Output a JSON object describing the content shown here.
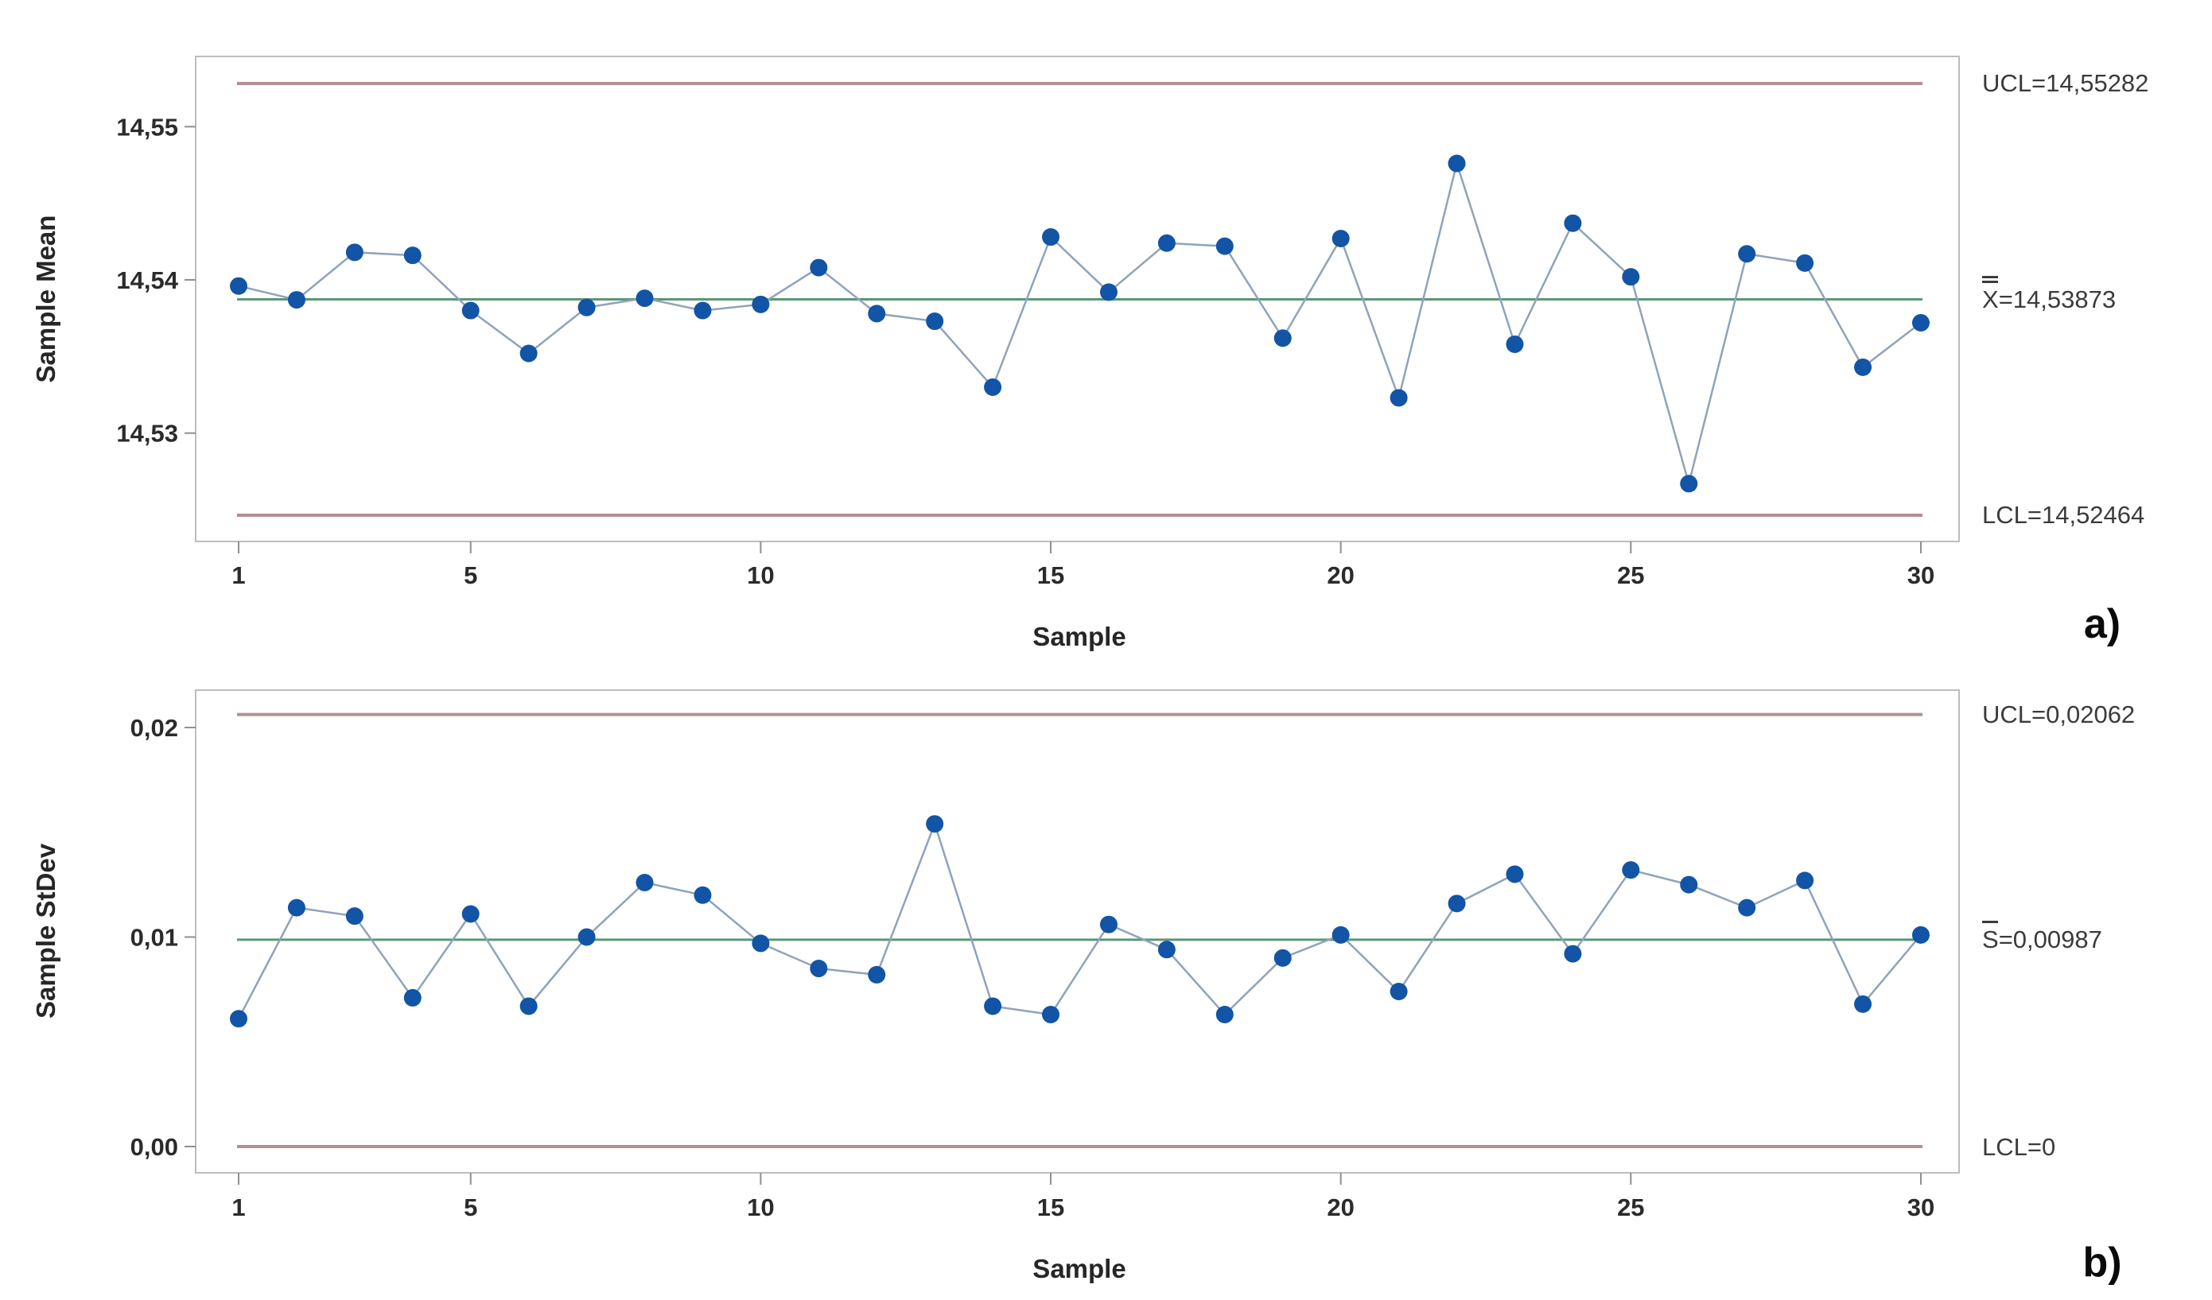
{
  "figure": {
    "background": "#ffffff",
    "panels": [
      {
        "id": "a",
        "letter": "a)",
        "xlabel": "Sample",
        "ylabel": "Sample Mean",
        "right_labels": {
          "ucl": "UCL=14,55282",
          "center_letter": "X",
          "center_bar": "double",
          "center_value": "=14,53873",
          "lcl": "LCL=14,52464"
        }
      },
      {
        "id": "b",
        "letter": "b)",
        "xlabel": "Sample",
        "ylabel": "Sample StDev",
        "right_labels": {
          "ucl": "UCL=0,02062",
          "center_letter": "S",
          "center_bar": "single",
          "center_value": "=0,00987",
          "lcl": "LCL=0"
        }
      }
    ]
  },
  "colors": {
    "marker": "#1254a6",
    "data_line": "#8fa3ba",
    "center_line": "#5c9677",
    "limit_line": "#b28f91",
    "plot_border": "#bdbdbd",
    "tick_mark": "#8f8f8f",
    "tick_text": "#2b2b2b"
  },
  "chart_data": [
    {
      "type": "line",
      "panel": "a",
      "xlabel": "Sample",
      "ylabel": "Sample Mean",
      "x": [
        1,
        2,
        3,
        4,
        5,
        6,
        7,
        8,
        9,
        10,
        11,
        12,
        13,
        14,
        15,
        16,
        17,
        18,
        19,
        20,
        21,
        22,
        23,
        24,
        25,
        26,
        27,
        28,
        29,
        30
      ],
      "values": [
        14.5396,
        14.5387,
        14.5418,
        14.5416,
        14.538,
        14.5352,
        14.5382,
        14.5388,
        14.538,
        14.5384,
        14.5408,
        14.5378,
        14.5373,
        14.533,
        14.5428,
        14.5392,
        14.5424,
        14.5422,
        14.5362,
        14.5427,
        14.5323,
        14.5476,
        14.5358,
        14.5437,
        14.5402,
        14.5267,
        14.5417,
        14.5411,
        14.5343,
        14.5372
      ],
      "center_line": 14.53873,
      "ucl": 14.55282,
      "lcl": 14.52464,
      "yticks": [
        14.53,
        14.54,
        14.55
      ],
      "ytick_labels": [
        "14,53",
        "14,54",
        "14,55"
      ],
      "xticks": [
        1,
        5,
        10,
        15,
        20,
        25,
        30
      ],
      "xtick_labels": [
        "1",
        "5",
        "10",
        "15",
        "20",
        "25",
        "30"
      ],
      "ylim": [
        14.5225,
        14.5565
      ],
      "xlim": [
        0.3,
        30.7
      ],
      "grid": false,
      "legend": false
    },
    {
      "type": "line",
      "panel": "b",
      "xlabel": "Sample",
      "ylabel": "Sample StDev",
      "x": [
        1,
        2,
        3,
        4,
        5,
        6,
        7,
        8,
        9,
        10,
        11,
        12,
        13,
        14,
        15,
        16,
        17,
        18,
        19,
        20,
        21,
        22,
        23,
        24,
        25,
        26,
        27,
        28,
        29,
        30
      ],
      "values": [
        0.0061,
        0.0114,
        0.011,
        0.0071,
        0.0111,
        0.0067,
        0.01,
        0.0126,
        0.012,
        0.0097,
        0.0085,
        0.0082,
        0.0154,
        0.0067,
        0.0063,
        0.0106,
        0.0094,
        0.0063,
        0.009,
        0.0101,
        0.0074,
        0.0116,
        0.013,
        0.0092,
        0.0132,
        0.0125,
        0.0114,
        0.0127,
        0.0068,
        0.0101
      ],
      "center_line": 0.00987,
      "ucl": 0.02062,
      "lcl": 0,
      "yticks": [
        0.0,
        0.01,
        0.02
      ],
      "ytick_labels": [
        "0,00",
        "0,01",
        "0,02"
      ],
      "xticks": [
        1,
        5,
        10,
        15,
        20,
        25,
        30
      ],
      "xtick_labels": [
        "1",
        "5",
        "10",
        "15",
        "20",
        "25",
        "30"
      ],
      "ylim": [
        -0.0013,
        0.0232
      ],
      "xlim": [
        0.3,
        30.7
      ],
      "grid": false,
      "legend": false
    }
  ]
}
